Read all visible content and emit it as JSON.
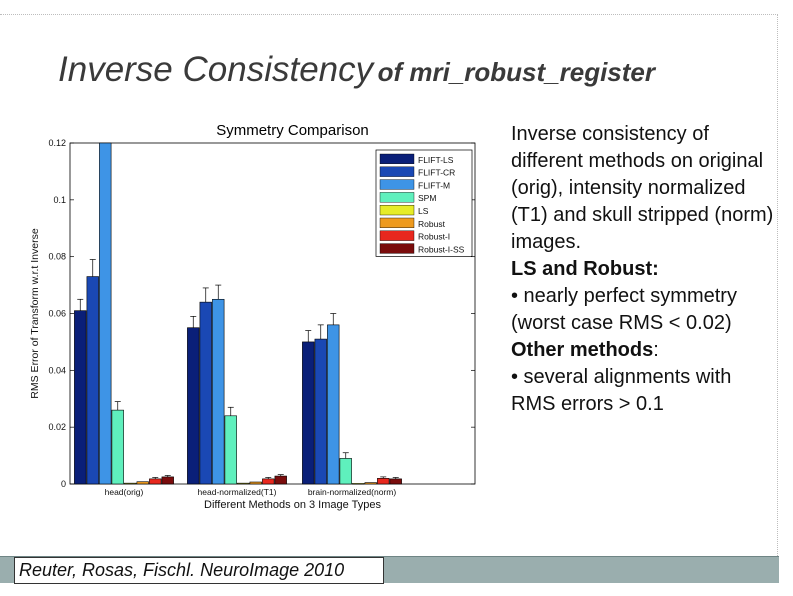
{
  "slide": {
    "title_main": "Inverse Consistency",
    "title_sub": "of mri_robust_register",
    "citation": "Reuter, Rosas, Fischl. NeuroImage 2010"
  },
  "text": {
    "p1": "Inverse consistency of different methods on original (orig), intensity normalized (T1) and skull stripped (norm) images.",
    "h2": "LS and Robust:",
    "p2": "• nearly perfect symmetry (worst case RMS < 0.02)",
    "h3": "Other methods",
    "h3_suffix": ":",
    "p3": "• several alignments with RMS errors > 0.1"
  },
  "chart_data": {
    "type": "bar",
    "title": "Symmetry Comparison",
    "xlabel": "Different Methods on 3 Image Types",
    "ylabel": "RMS Error of Transform w.r.t Inverse",
    "categories": [
      "head(orig)",
      "head-normalized(T1)",
      "brain-normalized(norm)"
    ],
    "ylim": [
      0,
      0.12
    ],
    "yticks": [
      0,
      0.02,
      0.04,
      0.06,
      0.08,
      0.1,
      0.12
    ],
    "ytick_labels": [
      "0",
      "0.02",
      "0.04",
      "0.06",
      "0.08",
      "0.1",
      "0.12"
    ],
    "legend_position": "top-right",
    "series": [
      {
        "name": "FLIFT-LS",
        "color": "#0a1f78",
        "values": [
          0.061,
          0.055,
          0.05
        ],
        "err": [
          0.004,
          0.004,
          0.004
        ]
      },
      {
        "name": "FLIFT-CR",
        "color": "#1a48b4",
        "values": [
          0.073,
          0.064,
          0.051
        ],
        "err": [
          0.006,
          0.005,
          0.005
        ]
      },
      {
        "name": "FLIFT-M",
        "color": "#3e94e6",
        "values": [
          0.12,
          0.065,
          0.056
        ],
        "err": [
          0.0,
          0.005,
          0.004
        ]
      },
      {
        "name": "SPM",
        "color": "#5ff0bd",
        "values": [
          0.026,
          0.024,
          0.009
        ],
        "err": [
          0.003,
          0.003,
          0.002
        ]
      },
      {
        "name": "LS",
        "color": "#e6ec28",
        "values": [
          0.0003,
          0.0003,
          0.0002
        ],
        "err": [
          0,
          0,
          0
        ]
      },
      {
        "name": "Robust",
        "color": "#ee9a1e",
        "values": [
          0.0008,
          0.0007,
          0.0005
        ],
        "err": [
          0,
          0,
          0
        ]
      },
      {
        "name": "Robust-I",
        "color": "#e8281e",
        "values": [
          0.0018,
          0.0018,
          0.002
        ],
        "err": [
          0.0005,
          0.0005,
          0.0005
        ]
      },
      {
        "name": "Robust-I-SS",
        "color": "#7a0c0c",
        "values": [
          0.0025,
          0.0028,
          0.0018
        ],
        "err": [
          0.0005,
          0.0005,
          0.0005
        ]
      }
    ]
  }
}
